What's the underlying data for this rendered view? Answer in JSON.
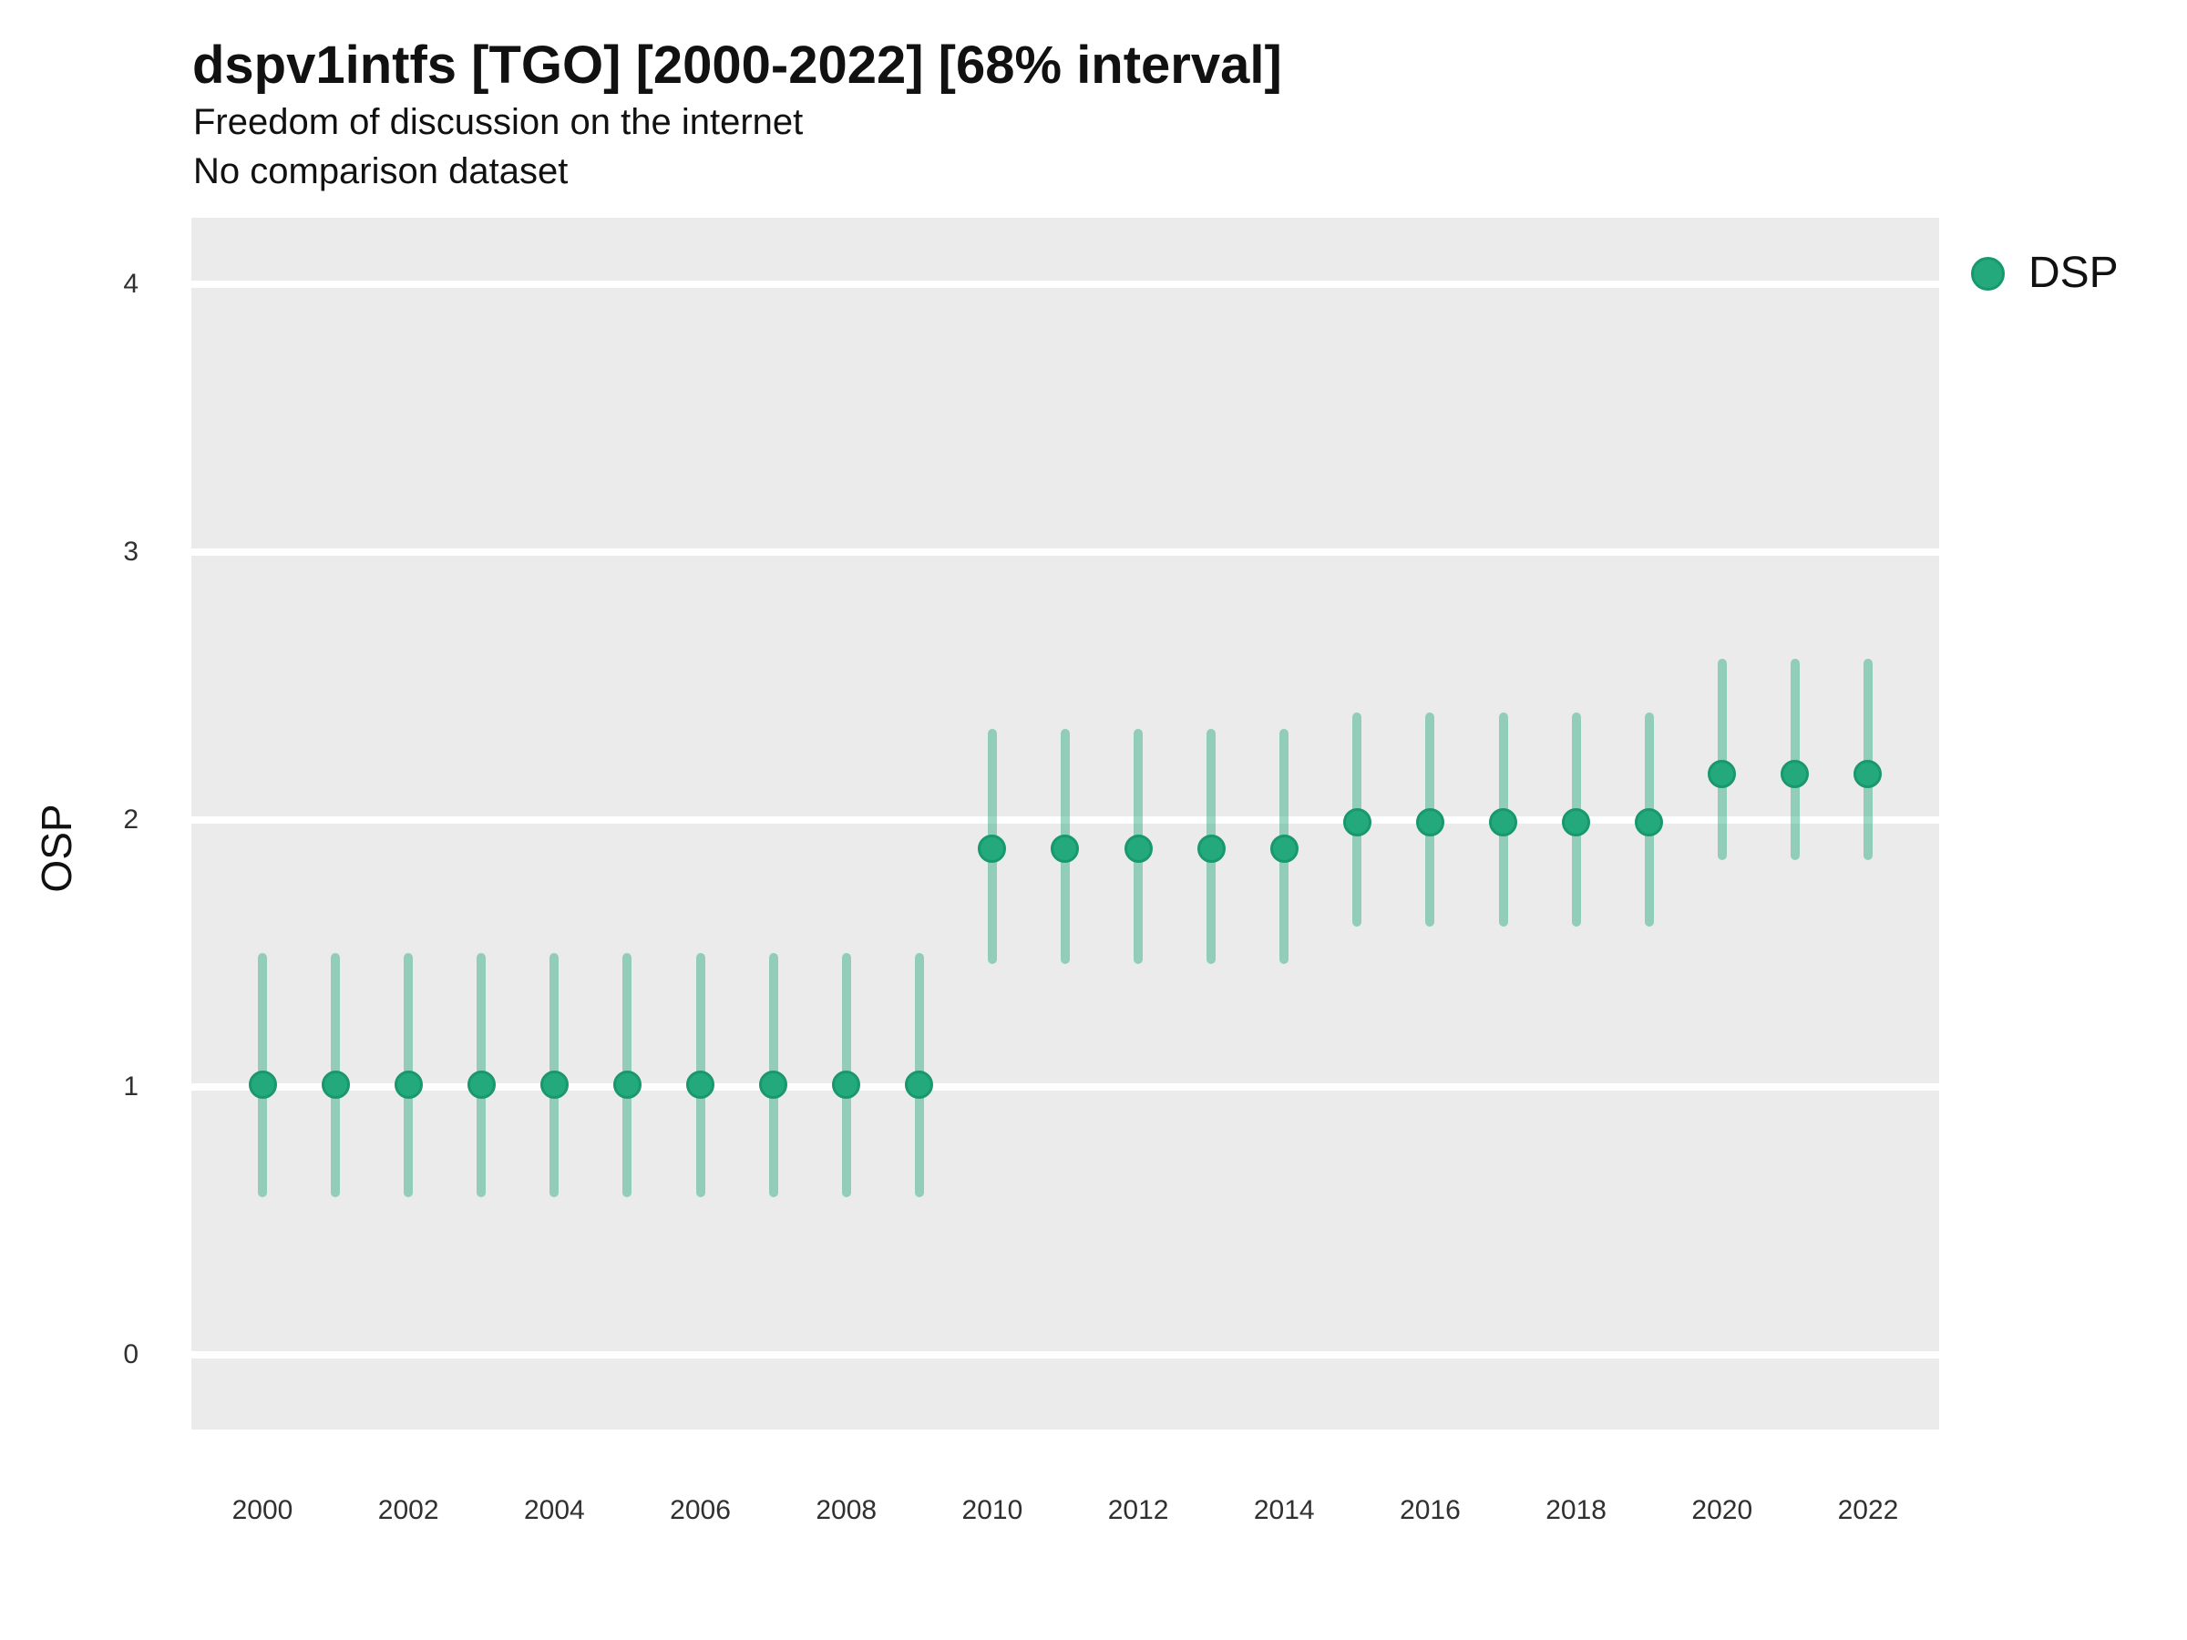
{
  "figure": {
    "title": "dspv1intfs [TGO] [2000-2022] [68% interval]",
    "subtitle": "Freedom of discussion on the internet",
    "comparison_note": "No comparison dataset",
    "y_axis_label": "OSP",
    "legend": {
      "label": "DSP"
    }
  },
  "colors": {
    "point_fill": "#24A97D",
    "point_stroke": "#18996B",
    "interval_bar": "rgba(36,169,125,0.45)",
    "panel_background": "#EBEBEB",
    "gridline": "#FFFFFF",
    "title_text": "#111111",
    "tick_text": "#303030"
  },
  "chart_data": {
    "type": "scatter",
    "title": "dspv1intfs [TGO] [2000-2022] [68% interval]",
    "subtitle": "Freedom of discussion on the internet",
    "note": "No comparison dataset",
    "xlabel": "",
    "ylabel": "OSP",
    "legend_entries": [
      "DSP"
    ],
    "legend_position": "right-top",
    "grid": "horizontal-major-only",
    "interval": "68%",
    "x": [
      2000,
      2001,
      2002,
      2003,
      2004,
      2005,
      2006,
      2007,
      2008,
      2009,
      2010,
      2011,
      2012,
      2013,
      2014,
      2015,
      2016,
      2017,
      2018,
      2019,
      2020,
      2021,
      2022
    ],
    "series": [
      {
        "name": "DSP",
        "estimate": [
          1.01,
          1.01,
          1.01,
          1.01,
          1.01,
          1.01,
          1.01,
          1.01,
          1.01,
          1.01,
          1.89,
          1.89,
          1.89,
          1.89,
          1.89,
          1.99,
          1.99,
          1.99,
          1.99,
          1.99,
          2.17,
          2.17,
          2.17
        ],
        "lower_68": [
          0.59,
          0.59,
          0.59,
          0.59,
          0.59,
          0.59,
          0.59,
          0.59,
          0.59,
          0.59,
          1.46,
          1.46,
          1.46,
          1.46,
          1.46,
          1.6,
          1.6,
          1.6,
          1.6,
          1.6,
          1.85,
          1.85,
          1.85
        ],
        "upper_68": [
          1.5,
          1.5,
          1.5,
          1.5,
          1.5,
          1.5,
          1.5,
          1.5,
          1.5,
          1.5,
          2.34,
          2.34,
          2.34,
          2.34,
          2.34,
          2.4,
          2.4,
          2.4,
          2.4,
          2.4,
          2.6,
          2.6,
          2.6
        ]
      }
    ],
    "yticks": [
      0,
      1,
      2,
      3,
      4
    ],
    "xticks": [
      2000,
      2002,
      2004,
      2006,
      2008,
      2010,
      2012,
      2014,
      2016,
      2018,
      2020,
      2022
    ],
    "ylim": [
      -0.21,
      4.25
    ],
    "xlim": [
      1999,
      2023
    ]
  }
}
